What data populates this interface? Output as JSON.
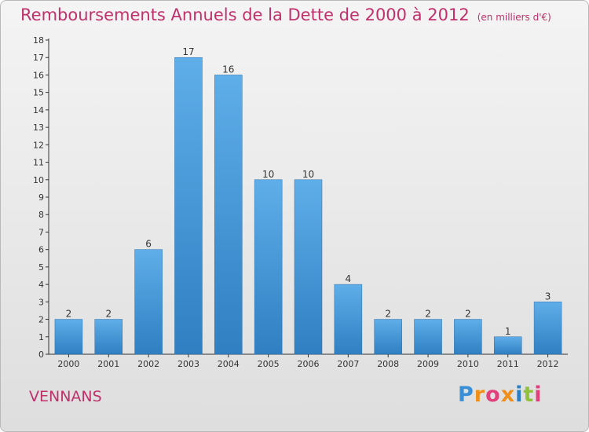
{
  "title": "Remboursements Annuels de la Dette de 2000 à 2012",
  "unit_note": "(en milliers d'€)",
  "place": "VENNANS",
  "logo": "Proxiti",
  "colors": {
    "title": "#c0306a",
    "bar_light": "#5faee9",
    "bar_dark": "#2f7fc2"
  },
  "chart_data": {
    "type": "bar",
    "title": "Remboursements Annuels de la Dette de 2000 à 2012",
    "categories": [
      "2000",
      "2001",
      "2002",
      "2003",
      "2004",
      "2005",
      "2006",
      "2007",
      "2008",
      "2009",
      "2010",
      "2011",
      "2012"
    ],
    "values": [
      2,
      2,
      6,
      17,
      16,
      10,
      10,
      4,
      2,
      2,
      2,
      1,
      3
    ],
    "ylim": [
      0,
      18
    ],
    "yticks": [
      0,
      1,
      2,
      3,
      4,
      5,
      6,
      7,
      8,
      9,
      10,
      11,
      12,
      13,
      14,
      15,
      16,
      17,
      18
    ],
    "grid": false
  }
}
